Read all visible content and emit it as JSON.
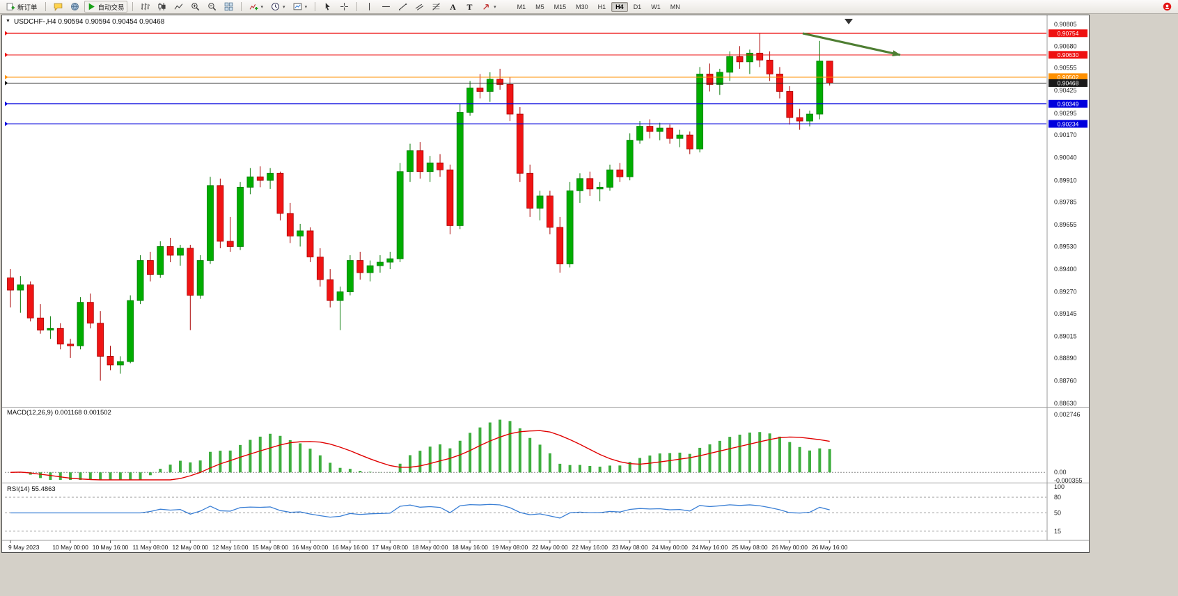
{
  "toolbar": {
    "new_order": "新订单",
    "autotrading": "自动交易",
    "timeframes": [
      "M1",
      "M5",
      "M15",
      "M30",
      "H1",
      "H4",
      "D1",
      "W1",
      "MN"
    ],
    "active_timeframe": "H4"
  },
  "icons": {
    "title_caret": "▼",
    "dropdown_caret": "▾"
  },
  "chart": {
    "title": "USDCHF-,H4 0.90594 0.90594 0.90454 0.90468",
    "symbol": "USDCHF-",
    "period": "H4",
    "ohlc": {
      "open": "0.90594",
      "high": "0.90594",
      "low": "0.90454",
      "close": "0.90468"
    },
    "y_ticks": [
      "0.90805",
      "0.90680",
      "0.90555",
      "0.90425",
      "0.90295",
      "0.90170",
      "0.90040",
      "0.89910",
      "0.89785",
      "0.89655",
      "0.89530",
      "0.89400",
      "0.89270",
      "0.89145",
      "0.89015",
      "0.88890",
      "0.88760",
      "0.88630"
    ],
    "levels": [
      {
        "price": 0.90754,
        "label": "0.90754",
        "color": "#ee1111",
        "current": false
      },
      {
        "price": 0.9063,
        "label": "0.90630",
        "color": "#ee1111",
        "current": false
      },
      {
        "price": 0.90502,
        "label": "0.90502",
        "color": "#ff9000",
        "current": false
      },
      {
        "price": 0.90468,
        "label": "0.90468",
        "color": "#1a1a1a",
        "current": true
      },
      {
        "price": 0.90349,
        "label": "0.90349",
        "color": "#0000dd",
        "current": false
      },
      {
        "price": 0.90234,
        "label": "0.90234",
        "color": "#0000dd",
        "current": false
      }
    ],
    "colors": {
      "up": "#00ad00",
      "up_dark": "#067a06",
      "down": "#f01414",
      "down_dark": "#a80000",
      "macd_bar": "#3fae3f",
      "macd_signal": "#e00000",
      "rsi_line": "#3a7fd5",
      "arrow": "#4e7e32"
    }
  },
  "macd": {
    "label": "MACD(12,26,9) 0.001168 0.001502",
    "name": "MACD",
    "params": [
      12,
      26,
      9
    ],
    "value_main": "0.001168",
    "value_signal": "0.001502",
    "scale_top": "0.002746",
    "scale_zero": "0.00",
    "scale_bottom": "-0.000355"
  },
  "rsi": {
    "label": "RSI(14) 55.4863",
    "name": "RSI",
    "params": [
      14
    ],
    "value": "55.4863",
    "scale": [
      "100",
      "80",
      "50",
      "15"
    ],
    "levels": [
      80,
      50,
      15
    ]
  },
  "chart_data": {
    "type": "candlestick",
    "symbol": "USDCHF",
    "period": "H4",
    "price_axis": {
      "min": 0.8863,
      "max": 0.90805
    },
    "x_labels": [
      "9 May 2023",
      "10 May 00:00",
      "10 May 16:00",
      "11 May 08:00",
      "12 May 00:00",
      "12 May 16:00",
      "15 May 08:00",
      "16 May 00:00",
      "16 May 16:00",
      "17 May 08:00",
      "18 May 00:00",
      "18 May 16:00",
      "19 May 08:00",
      "22 May 00:00",
      "22 May 16:00",
      "23 May 08:00",
      "24 May 00:00",
      "24 May 16:00",
      "25 May 08:00",
      "26 May 00:00",
      "26 May 16:00"
    ],
    "label_indices": [
      0,
      6,
      10,
      14,
      18,
      22,
      26,
      30,
      34,
      38,
      42,
      46,
      50,
      54,
      58,
      62,
      66,
      70,
      74,
      78,
      82
    ],
    "horizontal_lines": [
      0.90754,
      0.9063,
      0.90502,
      0.90468,
      0.90349,
      0.90234
    ],
    "indicators": [
      {
        "name": "MACD",
        "params": [
          12,
          26,
          9
        ],
        "values": [
          0.001168,
          0.001502
        ]
      },
      {
        "name": "RSI",
        "params": [
          14
        ],
        "value": 55.4863
      }
    ],
    "candles": [
      [
        0.8935,
        0.894,
        0.8918,
        0.8928
      ],
      [
        0.8928,
        0.8936,
        0.8915,
        0.8931
      ],
      [
        0.8931,
        0.8933,
        0.891,
        0.8912
      ],
      [
        0.8912,
        0.892,
        0.8903,
        0.8905
      ],
      [
        0.8905,
        0.8913,
        0.89,
        0.8906
      ],
      [
        0.8906,
        0.8909,
        0.8894,
        0.8897
      ],
      [
        0.8897,
        0.89,
        0.8889,
        0.8896
      ],
      [
        0.8896,
        0.8924,
        0.8894,
        0.8921
      ],
      [
        0.8921,
        0.8926,
        0.8906,
        0.8909
      ],
      [
        0.8909,
        0.8916,
        0.8876,
        0.889
      ],
      [
        0.889,
        0.8896,
        0.8882,
        0.8885
      ],
      [
        0.8885,
        0.889,
        0.888,
        0.8887
      ],
      [
        0.8887,
        0.8925,
        0.8886,
        0.8922
      ],
      [
        0.8922,
        0.8948,
        0.892,
        0.8945
      ],
      [
        0.8945,
        0.895,
        0.8933,
        0.8937
      ],
      [
        0.8937,
        0.8956,
        0.8935,
        0.8953
      ],
      [
        0.8953,
        0.8958,
        0.8944,
        0.8948
      ],
      [
        0.8948,
        0.8954,
        0.8942,
        0.8952
      ],
      [
        0.8952,
        0.8954,
        0.8905,
        0.8925
      ],
      [
        0.8925,
        0.8948,
        0.8923,
        0.8945
      ],
      [
        0.8945,
        0.8993,
        0.8943,
        0.8988
      ],
      [
        0.8988,
        0.8992,
        0.8952,
        0.8956
      ],
      [
        0.8956,
        0.897,
        0.895,
        0.8953
      ],
      [
        0.8953,
        0.899,
        0.8951,
        0.8987
      ],
      [
        0.8987,
        0.8998,
        0.8983,
        0.8993
      ],
      [
        0.8993,
        0.8999,
        0.8987,
        0.8991
      ],
      [
        0.8991,
        0.8998,
        0.8986,
        0.8995
      ],
      [
        0.8995,
        0.8996,
        0.8968,
        0.8972
      ],
      [
        0.8972,
        0.8978,
        0.8955,
        0.8959
      ],
      [
        0.8959,
        0.8966,
        0.8953,
        0.8962
      ],
      [
        0.8962,
        0.8964,
        0.8944,
        0.8947
      ],
      [
        0.8947,
        0.8952,
        0.893,
        0.8934
      ],
      [
        0.8934,
        0.894,
        0.8918,
        0.8922
      ],
      [
        0.8922,
        0.893,
        0.8905,
        0.8927
      ],
      [
        0.8927,
        0.8948,
        0.8925,
        0.8945
      ],
      [
        0.8945,
        0.895,
        0.8934,
        0.8938
      ],
      [
        0.8938,
        0.8945,
        0.8933,
        0.8942
      ],
      [
        0.8942,
        0.8948,
        0.8938,
        0.8944
      ],
      [
        0.8944,
        0.895,
        0.894,
        0.8946
      ],
      [
        0.8946,
        0.9001,
        0.8944,
        0.8996
      ],
      [
        0.8996,
        0.9012,
        0.899,
        0.9008
      ],
      [
        0.9008,
        0.9013,
        0.8992,
        0.8996
      ],
      [
        0.8996,
        0.9005,
        0.899,
        0.9001
      ],
      [
        0.9001,
        0.9006,
        0.8993,
        0.8997
      ],
      [
        0.8997,
        0.9,
        0.896,
        0.8965
      ],
      [
        0.8965,
        0.9035,
        0.8963,
        0.903
      ],
      [
        0.903,
        0.9048,
        0.9028,
        0.9044
      ],
      [
        0.9044,
        0.9052,
        0.9038,
        0.9042
      ],
      [
        0.9042,
        0.9053,
        0.9036,
        0.9049
      ],
      [
        0.9049,
        0.9055,
        0.9043,
        0.9046
      ],
      [
        0.9046,
        0.905,
        0.9025,
        0.9029
      ],
      [
        0.9029,
        0.9033,
        0.899,
        0.8995
      ],
      [
        0.8995,
        0.9,
        0.897,
        0.8975
      ],
      [
        0.8975,
        0.8985,
        0.8968,
        0.8982
      ],
      [
        0.8982,
        0.8985,
        0.896,
        0.8964
      ],
      [
        0.8964,
        0.897,
        0.8938,
        0.8943
      ],
      [
        0.8943,
        0.899,
        0.8941,
        0.8985
      ],
      [
        0.8985,
        0.8995,
        0.8978,
        0.8992
      ],
      [
        0.8992,
        0.8996,
        0.8982,
        0.8986
      ],
      [
        0.8986,
        0.899,
        0.8979,
        0.8987
      ],
      [
        0.8987,
        0.9,
        0.8985,
        0.8997
      ],
      [
        0.8997,
        0.9001,
        0.899,
        0.8993
      ],
      [
        0.8993,
        0.9018,
        0.8991,
        0.9014
      ],
      [
        0.9014,
        0.9025,
        0.9012,
        0.9022
      ],
      [
        0.9022,
        0.9026,
        0.9015,
        0.9019
      ],
      [
        0.9019,
        0.9024,
        0.9014,
        0.9021
      ],
      [
        0.9021,
        0.9023,
        0.9012,
        0.9015
      ],
      [
        0.9015,
        0.902,
        0.901,
        0.9017
      ],
      [
        0.9017,
        0.9019,
        0.9006,
        0.9009
      ],
      [
        0.9009,
        0.9056,
        0.9007,
        0.9052
      ],
      [
        0.9052,
        0.9058,
        0.9042,
        0.9046
      ],
      [
        0.9046,
        0.9055,
        0.904,
        0.9053
      ],
      [
        0.9053,
        0.9065,
        0.9048,
        0.9062
      ],
      [
        0.9062,
        0.9068,
        0.9055,
        0.9059
      ],
      [
        0.9059,
        0.9066,
        0.9052,
        0.9064
      ],
      [
        0.9064,
        0.90754,
        0.9056,
        0.906
      ],
      [
        0.906,
        0.9065,
        0.9048,
        0.9052
      ],
      [
        0.9052,
        0.9056,
        0.9038,
        0.9042
      ],
      [
        0.9042,
        0.9045,
        0.9023,
        0.9027
      ],
      [
        0.9027,
        0.9032,
        0.902,
        0.9025
      ],
      [
        0.9025,
        0.9031,
        0.9022,
        0.9029
      ],
      [
        0.9029,
        0.9071,
        0.9026,
        0.90594
      ],
      [
        0.90594,
        0.90594,
        0.90454,
        0.90468
      ]
    ]
  }
}
